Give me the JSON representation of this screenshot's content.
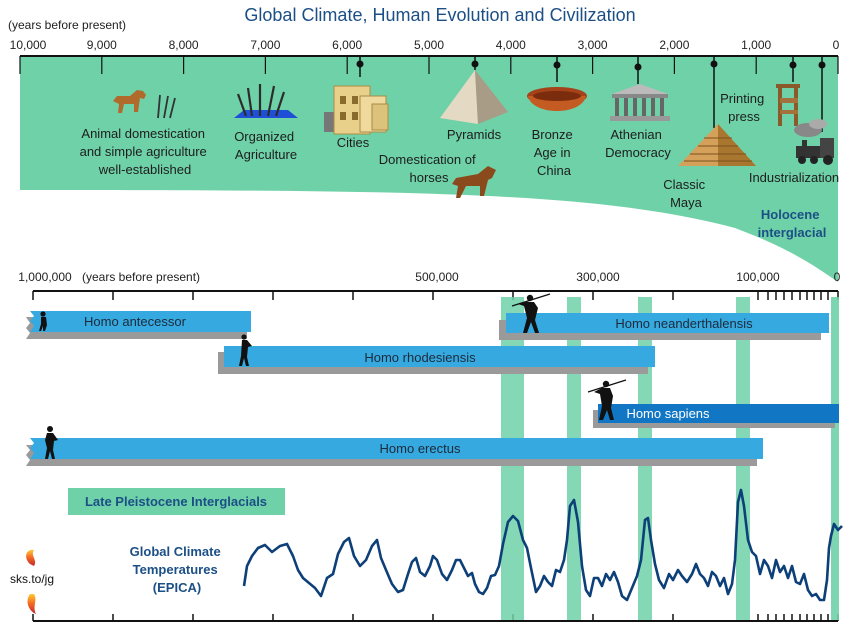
{
  "title": "Global Climate, Human Evolution and Civilization",
  "top_axis": {
    "unit_label": "(years before present)",
    "ticks": [
      "10,000",
      "9,000",
      "8,000",
      "7,000",
      "6,000",
      "5,000",
      "4,000",
      "3,000",
      "2,000",
      "1,000",
      "0"
    ]
  },
  "milestones": [
    {
      "label_lines": [
        "Animal domestication",
        "and simple agriculture",
        "well-established"
      ],
      "icon": "dog-and-grain-icon"
    },
    {
      "label_lines": [
        "Organized",
        "Agriculture"
      ],
      "icon": "wheat-sheaf-icon"
    },
    {
      "label_lines": [
        "Cities"
      ],
      "icon": "city-buildings-icon"
    },
    {
      "label_lines": [
        "Domestication of",
        "horses"
      ],
      "icon": "horse-icon"
    },
    {
      "label_lines": [
        "Pyramids"
      ],
      "icon": "pyramid-icon"
    },
    {
      "label_lines": [
        "Bronze",
        "Age in",
        "China"
      ],
      "icon": "bronze-bowl-icon"
    },
    {
      "label_lines": [
        "Athenian",
        "Democracy"
      ],
      "icon": "greek-temple-icon"
    },
    {
      "label_lines": [
        "Classic",
        "Maya"
      ],
      "icon": "maya-pyramid-icon"
    },
    {
      "label_lines": [
        "Printing",
        "press"
      ],
      "icon": "printing-press-icon"
    },
    {
      "label_lines": [
        "Industrialization"
      ],
      "icon": "steam-locomotive-icon"
    }
  ],
  "holocene_label": [
    "Holocene",
    "interglacial"
  ],
  "bottom_axis": {
    "unit_label": "(years before present)",
    "ticks": [
      "1,000,000",
      "500,000",
      "300,000",
      "100,000",
      "0"
    ]
  },
  "species": [
    {
      "name": "Homo antecessor",
      "start": 1000000,
      "end": 750000
    },
    {
      "name": "Homo neanderthalensis",
      "start": 400000,
      "end": 30000
    },
    {
      "name": "Homo rhodesiensis",
      "start": 750000,
      "end": 220000
    },
    {
      "name": "Homo sapiens",
      "start": 300000,
      "end": 0
    },
    {
      "name": "Homo erectus",
      "start": 1000000,
      "end": 90000
    }
  ],
  "interglacials_label": "Late Pleistocene Interglacials",
  "temperature_label": [
    "Global Climate",
    "Temperatures",
    "(EPICA)"
  ],
  "credit": "sks.to/jg",
  "colors": {
    "holocene_green": "#6fd1a8",
    "species_blue": "#36a9e1",
    "sapiens_blue": "#1177c4",
    "temperature_line": "#0d3f78",
    "title_blue": "#1c4f86"
  }
}
